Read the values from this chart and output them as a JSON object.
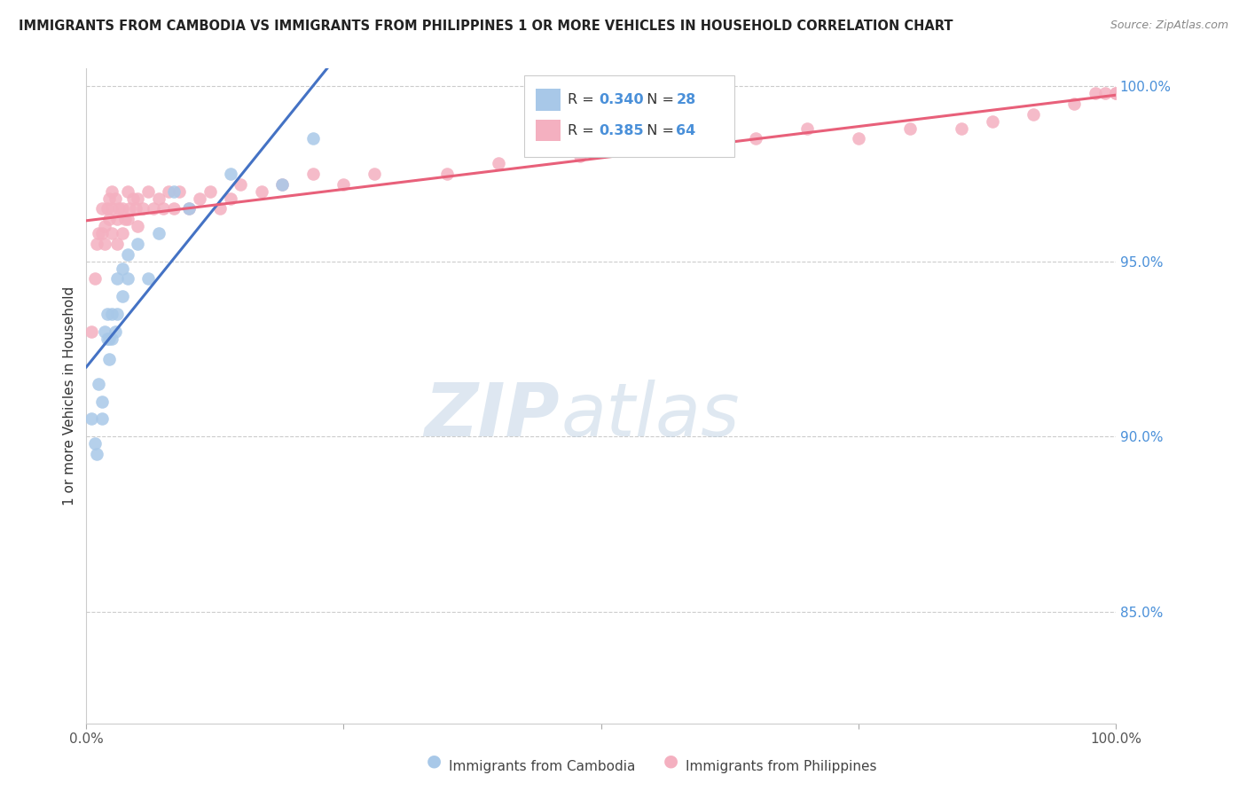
{
  "title": "IMMIGRANTS FROM CAMBODIA VS IMMIGRANTS FROM PHILIPPINES 1 OR MORE VEHICLES IN HOUSEHOLD CORRELATION CHART",
  "source": "Source: ZipAtlas.com",
  "ylabel": "1 or more Vehicles in Household",
  "legend_cambodia_R": "0.340",
  "legend_cambodia_N": "28",
  "legend_philippines_R": "0.385",
  "legend_philippines_N": "64",
  "cambodia_color": "#a8c8e8",
  "philippines_color": "#f4b0c0",
  "cambodia_line_color": "#4472c4",
  "philippines_line_color": "#e8607a",
  "watermark_zip": "ZIP",
  "watermark_atlas": "atlas",
  "background_color": "#ffffff",
  "grid_color": "#cccccc",
  "xlim": [
    0.0,
    1.0
  ],
  "ylim": [
    0.818,
    1.005
  ],
  "yticks": [
    0.85,
    0.9,
    0.95,
    1.0
  ],
  "ytick_labels": [
    "85.0%",
    "90.0%",
    "95.0%",
    "100.0%"
  ],
  "cambodia_x": [
    0.005,
    0.008,
    0.01,
    0.012,
    0.015,
    0.015,
    0.018,
    0.02,
    0.02,
    0.022,
    0.022,
    0.025,
    0.025,
    0.028,
    0.03,
    0.03,
    0.035,
    0.035,
    0.04,
    0.04,
    0.05,
    0.06,
    0.07,
    0.085,
    0.1,
    0.14,
    0.19,
    0.22
  ],
  "cambodia_y": [
    0.905,
    0.898,
    0.895,
    0.915,
    0.91,
    0.905,
    0.93,
    0.935,
    0.928,
    0.928,
    0.922,
    0.935,
    0.928,
    0.93,
    0.935,
    0.945,
    0.948,
    0.94,
    0.952,
    0.945,
    0.955,
    0.945,
    0.958,
    0.97,
    0.965,
    0.975,
    0.972,
    0.985
  ],
  "philippines_x": [
    0.005,
    0.008,
    0.01,
    0.012,
    0.015,
    0.015,
    0.018,
    0.018,
    0.02,
    0.022,
    0.022,
    0.025,
    0.025,
    0.025,
    0.028,
    0.03,
    0.03,
    0.032,
    0.035,
    0.035,
    0.038,
    0.04,
    0.04,
    0.042,
    0.045,
    0.048,
    0.05,
    0.05,
    0.055,
    0.06,
    0.065,
    0.07,
    0.075,
    0.08,
    0.085,
    0.09,
    0.1,
    0.11,
    0.12,
    0.13,
    0.14,
    0.15,
    0.17,
    0.19,
    0.22,
    0.25,
    0.28,
    0.35,
    0.4,
    0.48,
    0.55,
    0.62,
    0.65,
    0.7,
    0.75,
    0.8,
    0.85,
    0.88,
    0.92,
    0.96,
    0.98,
    0.99,
    1.0,
    1.0
  ],
  "philippines_y": [
    0.93,
    0.945,
    0.955,
    0.958,
    0.965,
    0.958,
    0.96,
    0.955,
    0.965,
    0.968,
    0.962,
    0.97,
    0.965,
    0.958,
    0.968,
    0.962,
    0.955,
    0.965,
    0.965,
    0.958,
    0.962,
    0.97,
    0.962,
    0.965,
    0.968,
    0.965,
    0.968,
    0.96,
    0.965,
    0.97,
    0.965,
    0.968,
    0.965,
    0.97,
    0.965,
    0.97,
    0.965,
    0.968,
    0.97,
    0.965,
    0.968,
    0.972,
    0.97,
    0.972,
    0.975,
    0.972,
    0.975,
    0.975,
    0.978,
    0.98,
    0.982,
    0.985,
    0.985,
    0.988,
    0.985,
    0.988,
    0.988,
    0.99,
    0.992,
    0.995,
    0.998,
    0.998,
    0.998,
    0.998
  ]
}
